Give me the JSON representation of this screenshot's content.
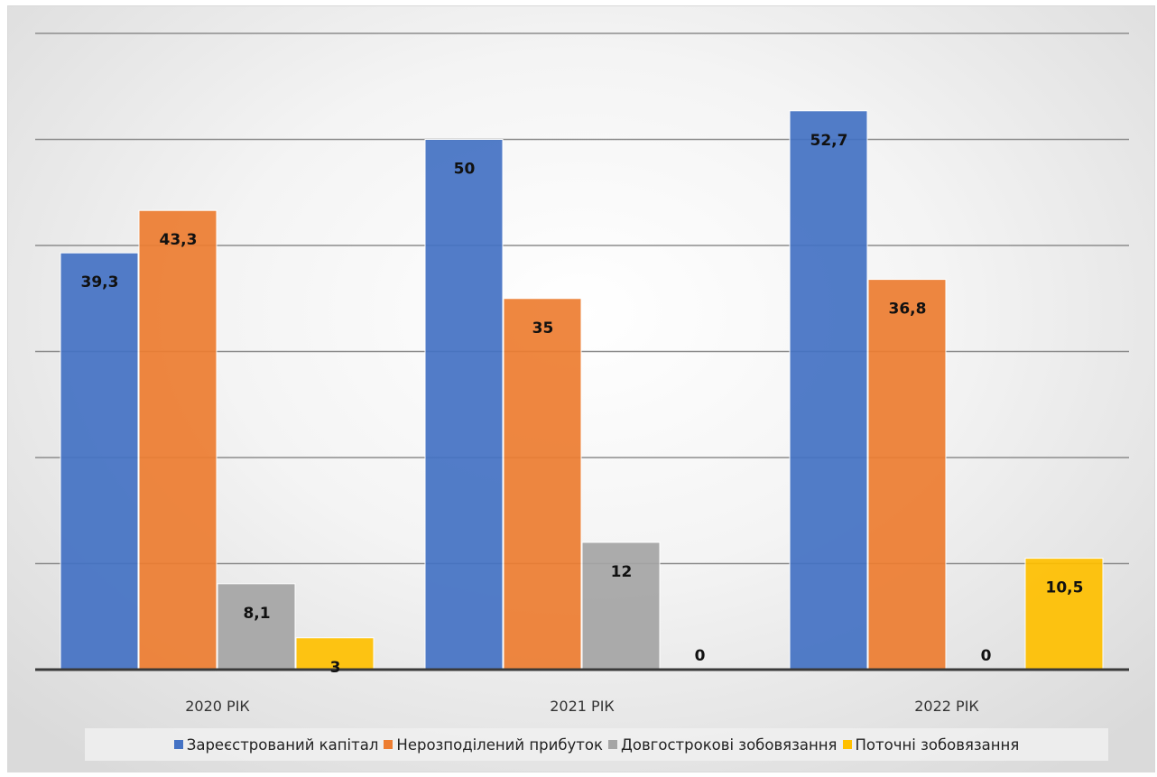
{
  "chart_data": {
    "type": "bar",
    "title": "",
    "xlabel": "",
    "ylabel": "",
    "categories": [
      "2020 РІК",
      "2021 РІК",
      "2022 РІК"
    ],
    "series": [
      {
        "name": "Зареєстрований капітал",
        "color": "#4472C4",
        "values": [
          39.3,
          50,
          52.7
        ],
        "labels": [
          "39,3",
          "50",
          "52,7"
        ]
      },
      {
        "name": "Нерозподілений прибуток",
        "color": "#ED7D31",
        "values": [
          43.3,
          35,
          36.8
        ],
        "labels": [
          "43,3",
          "35",
          "36,8"
        ]
      },
      {
        "name": "Довгострокові зобовязання",
        "color": "#A5A5A5",
        "values": [
          8.1,
          12,
          0
        ],
        "labels": [
          "8,1",
          "12",
          "0"
        ]
      },
      {
        "name": "Поточні зобовязання",
        "color": "#FFC000",
        "values": [
          3,
          0,
          10.5
        ],
        "labels": [
          "3",
          "0",
          "10,5"
        ]
      }
    ],
    "ylim": [
      0,
      60
    ],
    "ytick_step": 10,
    "grid": true,
    "legend_position": "bottom"
  }
}
